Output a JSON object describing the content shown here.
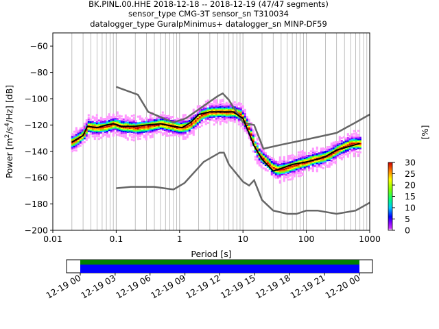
{
  "chart_data": {
    "type": "heatmap",
    "title_lines": [
      "BK.PINL.00.HHE   2018-12-18 -- 2018-12-19  (47/47 segments)",
      "sensor_type CMG-3T sensor_sn T310034",
      "datalogger_type GuralpMinimus+ datalogger_sn MINP-DF59"
    ],
    "xlabel": "Period [s]",
    "ylabel_parts": [
      "Power [m",
      "2",
      "/s",
      "4",
      "/Hz] [dB]"
    ],
    "x_scale": "log",
    "xlim": [
      0.01,
      1000
    ],
    "ylim": [
      -200,
      -50
    ],
    "x_ticks": [
      {
        "value": 0.01,
        "label": "0.01"
      },
      {
        "value": 0.1,
        "label": "0.1"
      },
      {
        "value": 1,
        "label": "1"
      },
      {
        "value": 10,
        "label": "10"
      },
      {
        "value": 100,
        "label": "100"
      },
      {
        "value": 1000,
        "label": "1000"
      }
    ],
    "y_ticks": [
      {
        "value": -60,
        "label": "−60"
      },
      {
        "value": -80,
        "label": "−80"
      },
      {
        "value": -100,
        "label": "−100"
      },
      {
        "value": -120,
        "label": "−120"
      },
      {
        "value": -140,
        "label": "−140"
      },
      {
        "value": -160,
        "label": "−160"
      },
      {
        "value": -180,
        "label": "−180"
      },
      {
        "value": -200,
        "label": "−200"
      }
    ],
    "grid": "vertical log grid",
    "colorbar": {
      "label": "[%]",
      "range": [
        0,
        30
      ],
      "ticks": [
        {
          "value": 0,
          "label": "0"
        },
        {
          "value": 5,
          "label": "5"
        },
        {
          "value": 10,
          "label": "10"
        },
        {
          "value": 15,
          "label": "15"
        },
        {
          "value": 20,
          "label": "20"
        },
        {
          "value": 25,
          "label": "25"
        },
        {
          "value": 30,
          "label": "30"
        }
      ]
    },
    "mean_psd": {
      "x": [
        0.02,
        0.03,
        0.035,
        0.05,
        0.07,
        0.09,
        0.12,
        0.2,
        0.3,
        0.5,
        0.8,
        1.1,
        1.5,
        2,
        3,
        5,
        7,
        10,
        15,
        20,
        30,
        40,
        60,
        100,
        150,
        200,
        300,
        500,
        700
      ],
      "y": [
        -133,
        -128,
        -121,
        -122,
        -120,
        -119,
        -121,
        -121,
        -120,
        -119,
        -121,
        -122,
        -118,
        -112,
        -110,
        -110,
        -110,
        -115,
        -136,
        -146,
        -155,
        -153,
        -150,
        -148,
        -146,
        -144,
        -139,
        -136,
        -134
      ]
    },
    "density_centers": {
      "x": [
        0.02,
        0.025,
        0.03,
        0.035,
        0.05,
        0.07,
        0.09,
        0.12,
        0.2,
        0.3,
        0.5,
        0.8,
        1,
        1.3,
        1.7,
        2.2,
        3,
        4,
        5,
        7,
        9,
        12,
        15,
        18,
        22,
        28,
        35,
        45,
        60,
        80,
        100,
        130,
        170,
        220,
        300,
        400,
        500,
        700
      ],
      "y": [
        -133,
        -130,
        -127,
        -121,
        -122,
        -121,
        -119,
        -121,
        -122,
        -121,
        -119,
        -121,
        -122,
        -121,
        -117,
        -112,
        -110,
        -110,
        -110,
        -110,
        -112,
        -122,
        -136,
        -143,
        -147,
        -152,
        -154,
        -153,
        -151,
        -149,
        -148,
        -146,
        -145,
        -143,
        -139,
        -136,
        -134,
        -134
      ]
    },
    "noise_models": {
      "high": {
        "x": [
          0.1,
          0.22,
          0.32,
          0.8,
          1.25,
          4,
          4.8,
          6,
          10,
          15,
          21,
          40,
          100,
          300,
          600,
          1000
        ],
        "y": [
          -91,
          -97,
          -110,
          -118,
          -115,
          -98,
          -96,
          -101,
          -118,
          -120,
          -138,
          -135,
          -131,
          -126,
          -118,
          -112
        ]
      },
      "low": {
        "x": [
          0.1,
          0.17,
          0.4,
          0.8,
          1.2,
          2.4,
          4.3,
          5,
          6,
          10,
          12.5,
          15,
          20,
          30,
          50,
          70,
          100,
          150,
          300,
          600,
          1000
        ],
        "y": [
          -168,
          -167,
          -167,
          -169,
          -164,
          -148,
          -141,
          -141,
          -150,
          -163,
          -166,
          -162,
          -177,
          -185,
          -187.5,
          -187.5,
          -185,
          -185,
          -187.5,
          -185,
          -179
        ]
      }
    },
    "timeline": {
      "tick_labels": [
        "12-19 00",
        "12-19 03",
        "12-19 06",
        "12-19 09",
        "12-19 12",
        "12-19 15",
        "12-19 18",
        "12-19 21",
        "12-20 00"
      ],
      "coverage_colors": [
        "#008000",
        "#0000ff"
      ]
    }
  }
}
